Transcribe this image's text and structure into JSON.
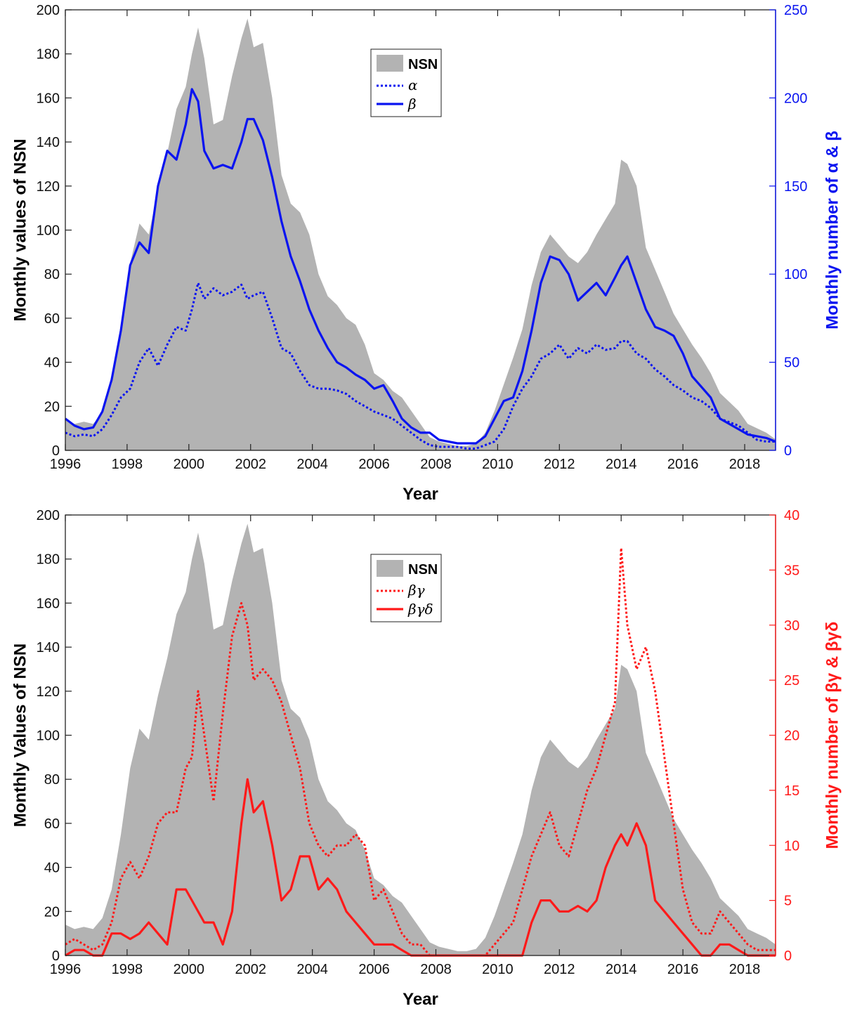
{
  "chart_data": [
    {
      "type": "area+line",
      "xlabel": "Year",
      "ylabel": "Monthly values of NSN",
      "ylabel2": "Monthly number of α & β",
      "xlim": [
        1996,
        2019
      ],
      "ylim": [
        0,
        200
      ],
      "ylim2": [
        0,
        250
      ],
      "xticks": [
        "1996",
        "1998",
        "2000",
        "2002",
        "2004",
        "2006",
        "2008",
        "2010",
        "2012",
        "2014",
        "2016",
        "2018"
      ],
      "yticks": [
        "0",
        "20",
        "40",
        "60",
        "80",
        "100",
        "120",
        "140",
        "160",
        "180",
        "200"
      ],
      "yticks2": [
        "0",
        "50",
        "100",
        "150",
        "200",
        "250"
      ],
      "colors": {
        "area": "#b3b3b3",
        "series": "#0a14f0"
      },
      "legend": {
        "position": "top-center",
        "entries": [
          "NSN",
          "α",
          "β"
        ]
      },
      "area": {
        "name": "NSN",
        "x": [
          1996.0,
          1996.3,
          1996.6,
          1996.9,
          1997.2,
          1997.5,
          1997.8,
          1998.1,
          1998.4,
          1998.7,
          1999.0,
          1999.3,
          1999.6,
          1999.9,
          2000.1,
          2000.3,
          2000.5,
          2000.8,
          2001.1,
          2001.4,
          2001.7,
          2001.9,
          2002.1,
          2002.4,
          2002.7,
          2003.0,
          2003.3,
          2003.6,
          2003.9,
          2004.2,
          2004.5,
          2004.8,
          2005.1,
          2005.4,
          2005.7,
          2006.0,
          2006.3,
          2006.6,
          2006.9,
          2007.2,
          2007.5,
          2007.8,
          2008.1,
          2008.4,
          2008.7,
          2009.0,
          2009.3,
          2009.6,
          2009.9,
          2010.2,
          2010.5,
          2010.8,
          2011.1,
          2011.4,
          2011.7,
          2012.0,
          2012.3,
          2012.6,
          2012.9,
          2013.2,
          2013.5,
          2013.8,
          2014.0,
          2014.2,
          2014.5,
          2014.8,
          2015.1,
          2015.4,
          2015.7,
          2016.0,
          2016.3,
          2016.6,
          2016.9,
          2017.2,
          2017.5,
          2017.8,
          2018.1,
          2018.4,
          2018.7,
          2019.0
        ],
        "values": [
          14,
          12,
          13,
          12,
          17,
          30,
          55,
          85,
          103,
          98,
          118,
          135,
          155,
          165,
          180,
          192,
          178,
          148,
          150,
          170,
          187,
          196,
          183,
          185,
          160,
          125,
          112,
          108,
          98,
          80,
          70,
          66,
          60,
          57,
          48,
          35,
          32,
          27,
          24,
          18,
          12,
          6,
          4,
          3,
          2,
          2,
          3,
          8,
          18,
          30,
          42,
          55,
          75,
          90,
          98,
          93,
          88,
          85,
          90,
          98,
          105,
          112,
          132,
          130,
          120,
          92,
          82,
          72,
          62,
          55,
          48,
          42,
          35,
          26,
          22,
          18,
          12,
          10,
          8,
          5
        ]
      },
      "series": [
        {
          "name": "α",
          "axis": "right",
          "style": "dotted",
          "x": [
            1996.0,
            1996.3,
            1996.6,
            1996.9,
            1997.2,
            1997.5,
            1997.8,
            1998.1,
            1998.4,
            1998.7,
            1999.0,
            1999.3,
            1999.6,
            1999.9,
            2000.1,
            2000.3,
            2000.5,
            2000.8,
            2001.1,
            2001.4,
            2001.7,
            2001.9,
            2002.1,
            2002.4,
            2002.7,
            2003.0,
            2003.3,
            2003.6,
            2003.9,
            2004.2,
            2004.5,
            2004.8,
            2005.1,
            2005.4,
            2005.7,
            2006.0,
            2006.3,
            2006.6,
            2006.9,
            2007.2,
            2007.5,
            2007.8,
            2008.1,
            2008.4,
            2008.7,
            2009.0,
            2009.3,
            2009.6,
            2009.9,
            2010.2,
            2010.5,
            2010.8,
            2011.1,
            2011.4,
            2011.7,
            2012.0,
            2012.3,
            2012.6,
            2012.9,
            2013.2,
            2013.5,
            2013.8,
            2014.0,
            2014.2,
            2014.5,
            2014.8,
            2015.1,
            2015.4,
            2015.7,
            2016.0,
            2016.3,
            2016.6,
            2016.9,
            2017.2,
            2017.5,
            2017.8,
            2018.1,
            2018.4,
            2018.7,
            2019.0
          ],
          "values": [
            10,
            8,
            9,
            8,
            12,
            20,
            30,
            35,
            50,
            58,
            48,
            60,
            70,
            68,
            80,
            95,
            86,
            92,
            88,
            90,
            94,
            86,
            88,
            90,
            75,
            58,
            55,
            45,
            37,
            35,
            35,
            34,
            32,
            28,
            25,
            22,
            20,
            18,
            14,
            10,
            6,
            3,
            2,
            2,
            2,
            1,
            1,
            3,
            5,
            12,
            25,
            35,
            42,
            52,
            55,
            60,
            52,
            58,
            55,
            60,
            57,
            58,
            62,
            62,
            55,
            52,
            46,
            42,
            37,
            34,
            30,
            28,
            24,
            18,
            16,
            14,
            10,
            6,
            5,
            5
          ]
        },
        {
          "name": "β",
          "axis": "right",
          "style": "solid",
          "x": [
            1996.0,
            1996.3,
            1996.6,
            1996.9,
            1997.2,
            1997.5,
            1997.8,
            1998.1,
            1998.4,
            1998.7,
            1999.0,
            1999.3,
            1999.6,
            1999.9,
            2000.1,
            2000.3,
            2000.5,
            2000.8,
            2001.1,
            2001.4,
            2001.7,
            2001.9,
            2002.1,
            2002.4,
            2002.7,
            2003.0,
            2003.3,
            2003.6,
            2003.9,
            2004.2,
            2004.5,
            2004.8,
            2005.1,
            2005.4,
            2005.7,
            2006.0,
            2006.3,
            2006.6,
            2006.9,
            2007.2,
            2007.5,
            2007.8,
            2008.1,
            2008.4,
            2008.7,
            2009.0,
            2009.3,
            2009.6,
            2009.9,
            2010.2,
            2010.5,
            2010.8,
            2011.1,
            2011.4,
            2011.7,
            2012.0,
            2012.3,
            2012.6,
            2012.9,
            2013.2,
            2013.5,
            2013.8,
            2014.0,
            2014.2,
            2014.5,
            2014.8,
            2015.1,
            2015.4,
            2015.7,
            2016.0,
            2016.3,
            2016.6,
            2016.9,
            2017.2,
            2017.5,
            2017.8,
            2018.1,
            2018.4,
            2018.7,
            2019.0
          ],
          "values": [
            18,
            14,
            12,
            13,
            22,
            40,
            68,
            105,
            118,
            112,
            150,
            170,
            165,
            185,
            205,
            198,
            170,
            160,
            162,
            160,
            175,
            188,
            188,
            176,
            155,
            130,
            110,
            96,
            80,
            68,
            58,
            50,
            47,
            43,
            40,
            35,
            37,
            28,
            18,
            13,
            10,
            10,
            6,
            5,
            4,
            4,
            4,
            8,
            18,
            28,
            30,
            45,
            68,
            95,
            110,
            108,
            100,
            85,
            90,
            95,
            88,
            98,
            105,
            110,
            95,
            80,
            70,
            68,
            65,
            55,
            42,
            36,
            30,
            18,
            15,
            12,
            9,
            8,
            7,
            5
          ]
        }
      ]
    },
    {
      "type": "area+line",
      "xlabel": "Year",
      "ylabel": "Monthly Values of NSN",
      "ylabel2": "Monthly number of βγ & βγδ",
      "xlim": [
        1996,
        2019
      ],
      "ylim": [
        0,
        200
      ],
      "ylim2": [
        0,
        40
      ],
      "xticks": [
        "1996",
        "1998",
        "2000",
        "2002",
        "2004",
        "2006",
        "2008",
        "2010",
        "2012",
        "2014",
        "2016",
        "2018"
      ],
      "yticks": [
        "0",
        "20",
        "40",
        "60",
        "80",
        "100",
        "120",
        "140",
        "160",
        "180",
        "200"
      ],
      "yticks2": [
        "0",
        "5",
        "10",
        "15",
        "20",
        "25",
        "30",
        "35",
        "40"
      ],
      "colors": {
        "area": "#b3b3b3",
        "series": "#ff1a1a"
      },
      "legend": {
        "position": "top-center",
        "entries": [
          "NSN",
          "βγ",
          "βγδ"
        ]
      },
      "area": {
        "name": "NSN",
        "x": [
          1996.0,
          1996.3,
          1996.6,
          1996.9,
          1997.2,
          1997.5,
          1997.8,
          1998.1,
          1998.4,
          1998.7,
          1999.0,
          1999.3,
          1999.6,
          1999.9,
          2000.1,
          2000.3,
          2000.5,
          2000.8,
          2001.1,
          2001.4,
          2001.7,
          2001.9,
          2002.1,
          2002.4,
          2002.7,
          2003.0,
          2003.3,
          2003.6,
          2003.9,
          2004.2,
          2004.5,
          2004.8,
          2005.1,
          2005.4,
          2005.7,
          2006.0,
          2006.3,
          2006.6,
          2006.9,
          2007.2,
          2007.5,
          2007.8,
          2008.1,
          2008.4,
          2008.7,
          2009.0,
          2009.3,
          2009.6,
          2009.9,
          2010.2,
          2010.5,
          2010.8,
          2011.1,
          2011.4,
          2011.7,
          2012.0,
          2012.3,
          2012.6,
          2012.9,
          2013.2,
          2013.5,
          2013.8,
          2014.0,
          2014.2,
          2014.5,
          2014.8,
          2015.1,
          2015.4,
          2015.7,
          2016.0,
          2016.3,
          2016.6,
          2016.9,
          2017.2,
          2017.5,
          2017.8,
          2018.1,
          2018.4,
          2018.7,
          2019.0
        ],
        "values": [
          14,
          12,
          13,
          12,
          17,
          30,
          55,
          85,
          103,
          98,
          118,
          135,
          155,
          165,
          180,
          192,
          178,
          148,
          150,
          170,
          187,
          196,
          183,
          185,
          160,
          125,
          112,
          108,
          98,
          80,
          70,
          66,
          60,
          57,
          48,
          35,
          32,
          27,
          24,
          18,
          12,
          6,
          4,
          3,
          2,
          2,
          3,
          8,
          18,
          30,
          42,
          55,
          75,
          90,
          98,
          93,
          88,
          85,
          90,
          98,
          105,
          112,
          132,
          130,
          120,
          92,
          82,
          72,
          62,
          55,
          48,
          42,
          35,
          26,
          22,
          18,
          12,
          10,
          8,
          5
        ]
      },
      "series": [
        {
          "name": "βγ",
          "axis": "right",
          "style": "dotted",
          "x": [
            1996.0,
            1996.3,
            1996.6,
            1996.9,
            1997.2,
            1997.5,
            1997.8,
            1998.1,
            1998.4,
            1998.7,
            1999.0,
            1999.3,
            1999.6,
            1999.9,
            2000.1,
            2000.3,
            2000.5,
            2000.8,
            2001.1,
            2001.4,
            2001.7,
            2001.9,
            2002.1,
            2002.4,
            2002.7,
            2003.0,
            2003.3,
            2003.6,
            2003.9,
            2004.2,
            2004.5,
            2004.8,
            2005.1,
            2005.4,
            2005.7,
            2006.0,
            2006.3,
            2006.6,
            2006.9,
            2007.2,
            2007.5,
            2007.8,
            2008.1,
            2008.4,
            2008.7,
            2009.0,
            2009.3,
            2009.6,
            2009.9,
            2010.2,
            2010.5,
            2010.8,
            2011.1,
            2011.4,
            2011.7,
            2012.0,
            2012.3,
            2012.6,
            2012.9,
            2013.2,
            2013.5,
            2013.8,
            2014.0,
            2014.2,
            2014.5,
            2014.8,
            2015.1,
            2015.4,
            2015.7,
            2016.0,
            2016.3,
            2016.6,
            2016.9,
            2017.2,
            2017.5,
            2017.8,
            2018.1,
            2018.4,
            2018.7,
            2019.0
          ],
          "values": [
            1,
            1.5,
            1,
            0.5,
            1,
            3,
            7,
            8.5,
            7,
            9,
            12,
            13,
            13,
            17,
            18,
            24,
            20,
            14,
            22,
            29,
            32,
            30,
            25,
            26,
            25,
            23,
            20,
            17,
            12,
            10,
            9,
            10,
            10,
            11,
            10,
            5,
            6,
            4,
            2,
            1,
            1,
            0,
            0,
            0,
            0,
            0,
            0,
            0,
            1,
            2,
            3,
            6,
            9,
            11,
            13,
            10,
            9,
            12,
            15,
            17,
            20,
            23,
            37,
            30,
            26,
            28,
            24,
            18,
            12,
            6,
            3,
            2,
            2,
            4,
            3,
            2,
            1,
            0.5,
            0.5,
            0.5
          ]
        },
        {
          "name": "βγδ",
          "axis": "right",
          "style": "solid",
          "x": [
            1996.0,
            1996.3,
            1996.6,
            1996.9,
            1997.2,
            1997.5,
            1997.8,
            1998.1,
            1998.4,
            1998.7,
            1999.0,
            1999.3,
            1999.6,
            1999.9,
            2000.1,
            2000.3,
            2000.5,
            2000.8,
            2001.1,
            2001.4,
            2001.7,
            2001.9,
            2002.1,
            2002.4,
            2002.7,
            2003.0,
            2003.3,
            2003.6,
            2003.9,
            2004.2,
            2004.5,
            2004.8,
            2005.1,
            2005.4,
            2005.7,
            2006.0,
            2006.3,
            2006.6,
            2006.9,
            2007.2,
            2007.5,
            2007.8,
            2008.1,
            2008.4,
            2008.7,
            2009.0,
            2009.3,
            2009.6,
            2009.9,
            2010.2,
            2010.5,
            2010.8,
            2011.1,
            2011.4,
            2011.7,
            2012.0,
            2012.3,
            2012.6,
            2012.9,
            2013.2,
            2013.5,
            2013.8,
            2014.0,
            2014.2,
            2014.5,
            2014.8,
            2015.1,
            2015.4,
            2015.7,
            2016.0,
            2016.3,
            2016.6,
            2016.9,
            2017.2,
            2017.5,
            2017.8,
            2018.1,
            2018.4,
            2018.7,
            2019.0
          ],
          "values": [
            0,
            0.5,
            0.5,
            0,
            0,
            2,
            2,
            1.5,
            2,
            3,
            2,
            1,
            6,
            6,
            5,
            4,
            3,
            3,
            1,
            4,
            12,
            16,
            13,
            14,
            10,
            5,
            6,
            9,
            9,
            6,
            7,
            6,
            4,
            3,
            2,
            1,
            1,
            1,
            0.5,
            0,
            0,
            0,
            0,
            0,
            0,
            0,
            0,
            0,
            0,
            0,
            0,
            0,
            3,
            5,
            5,
            4,
            4,
            4.5,
            4,
            5,
            8,
            10,
            11,
            10,
            12,
            10,
            5,
            4,
            3,
            2,
            1,
            0,
            0,
            1,
            1,
            0.5,
            0,
            0,
            0,
            0
          ]
        }
      ]
    }
  ]
}
